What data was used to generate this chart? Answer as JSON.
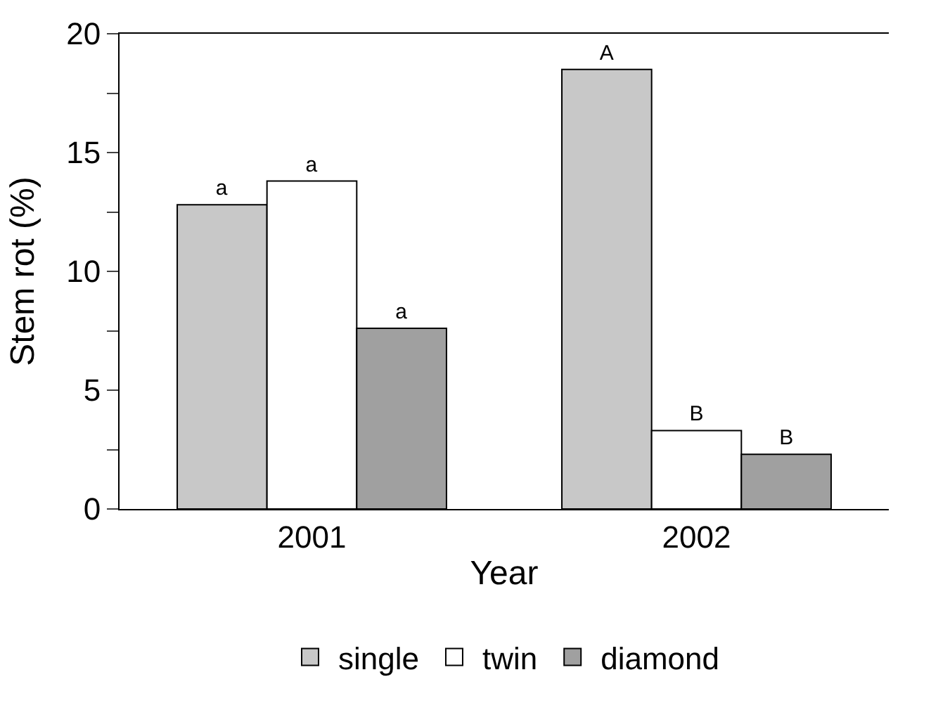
{
  "chart_data": {
    "type": "bar",
    "xlabel": "Year",
    "ylabel": "Stem rot (%)",
    "categories": [
      "2001",
      "2002"
    ],
    "series": [
      {
        "name": "single",
        "color": "#c8c8c8",
        "values": [
          12.8,
          18.5
        ],
        "value_labels": [
          "a",
          "A"
        ]
      },
      {
        "name": "twin",
        "color": "#ffffff",
        "values": [
          13.8,
          3.3
        ],
        "value_labels": [
          "a",
          "B"
        ]
      },
      {
        "name": "diamond",
        "color": "#a0a0a0",
        "values": [
          7.6,
          2.3
        ],
        "value_labels": [
          "a",
          "B"
        ]
      }
    ],
    "ylim": [
      0,
      20
    ],
    "yticks": [
      0,
      {
        "value": 2.5,
        "label": null
      },
      5,
      {
        "value": 7.5,
        "label": null
      },
      10,
      {
        "value": 12.5,
        "label": null
      },
      15,
      {
        "value": 17.5,
        "label": null
      },
      20
    ],
    "legend": "bottom"
  }
}
